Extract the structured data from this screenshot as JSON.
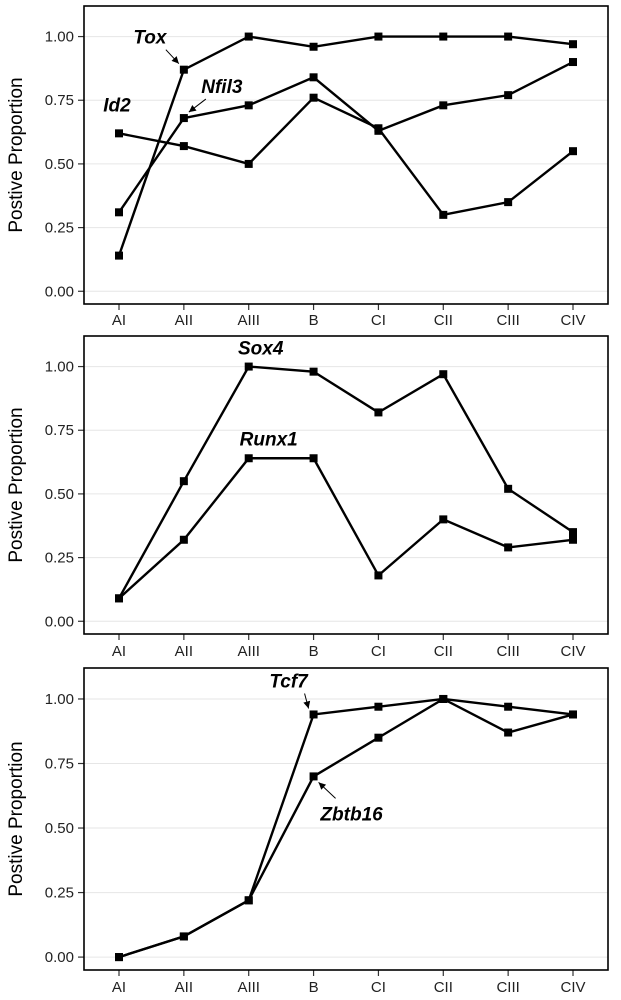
{
  "chart_data": [
    {
      "type": "line",
      "ylabel": "Postive Proportion",
      "xlabel": "",
      "categories": [
        "AI",
        "AII",
        "AIII",
        "B",
        "CI",
        "CII",
        "CIII",
        "CIV"
      ],
      "ylim": [
        -0.05,
        1.12
      ],
      "yticks": [
        "0.00",
        "0.25",
        "0.50",
        "0.75",
        "1.00"
      ],
      "grid": true,
      "series": [
        {
          "name": "Tox",
          "values": [
            0.14,
            0.87,
            1.0,
            0.96,
            1.0,
            1.0,
            1.0,
            0.97
          ]
        },
        {
          "name": "Nfil3",
          "values": [
            0.31,
            0.68,
            0.73,
            0.84,
            0.63,
            0.73,
            0.77,
            0.9
          ]
        },
        {
          "name": "Id2",
          "values": [
            0.62,
            0.57,
            0.5,
            0.76,
            0.64,
            0.3,
            0.35,
            0.55
          ]
        }
      ],
      "annotations": [
        {
          "label": "Tox",
          "series": "Tox",
          "point": 1
        },
        {
          "label": "Nfil3",
          "series": "Nfil3",
          "point": 1
        },
        {
          "label": "Id2",
          "series": "Id2",
          "point": 0
        }
      ]
    },
    {
      "type": "line",
      "ylabel": "Postive Proportion",
      "xlabel": "",
      "categories": [
        "AI",
        "AII",
        "AIII",
        "B",
        "CI",
        "CII",
        "CIII",
        "CIV"
      ],
      "ylim": [
        -0.05,
        1.12
      ],
      "yticks": [
        "0.00",
        "0.25",
        "0.50",
        "0.75",
        "1.00"
      ],
      "grid": true,
      "series": [
        {
          "name": "Sox4",
          "values": [
            0.09,
            0.55,
            1.0,
            0.98,
            0.82,
            0.97,
            0.52,
            0.35
          ]
        },
        {
          "name": "Runx1",
          "values": [
            0.09,
            0.32,
            0.64,
            0.64,
            0.18,
            0.4,
            0.29,
            0.32
          ]
        }
      ],
      "annotations": [
        {
          "label": "Sox4",
          "series": "Sox4",
          "point": 2
        },
        {
          "label": "Runx1",
          "series": "Runx1",
          "point": 2
        }
      ]
    },
    {
      "type": "line",
      "ylabel": "Postive Proportion",
      "xlabel": "",
      "categories": [
        "AI",
        "AII",
        "AIII",
        "B",
        "CI",
        "CII",
        "CIII",
        "CIV"
      ],
      "ylim": [
        -0.05,
        1.12
      ],
      "yticks": [
        "0.00",
        "0.25",
        "0.50",
        "0.75",
        "1.00"
      ],
      "grid": true,
      "series": [
        {
          "name": "Tcf7",
          "values": [
            0.0,
            0.08,
            0.22,
            0.94,
            0.97,
            1.0,
            0.97,
            0.94
          ]
        },
        {
          "name": "Zbtb16",
          "values": [
            0.0,
            0.08,
            0.22,
            0.7,
            0.85,
            1.0,
            0.87,
            0.94
          ]
        }
      ],
      "annotations": [
        {
          "label": "Tcf7",
          "series": "Tcf7",
          "point": 3
        },
        {
          "label": "Zbtb16",
          "series": "Zbtb16",
          "point": 3
        }
      ]
    }
  ]
}
